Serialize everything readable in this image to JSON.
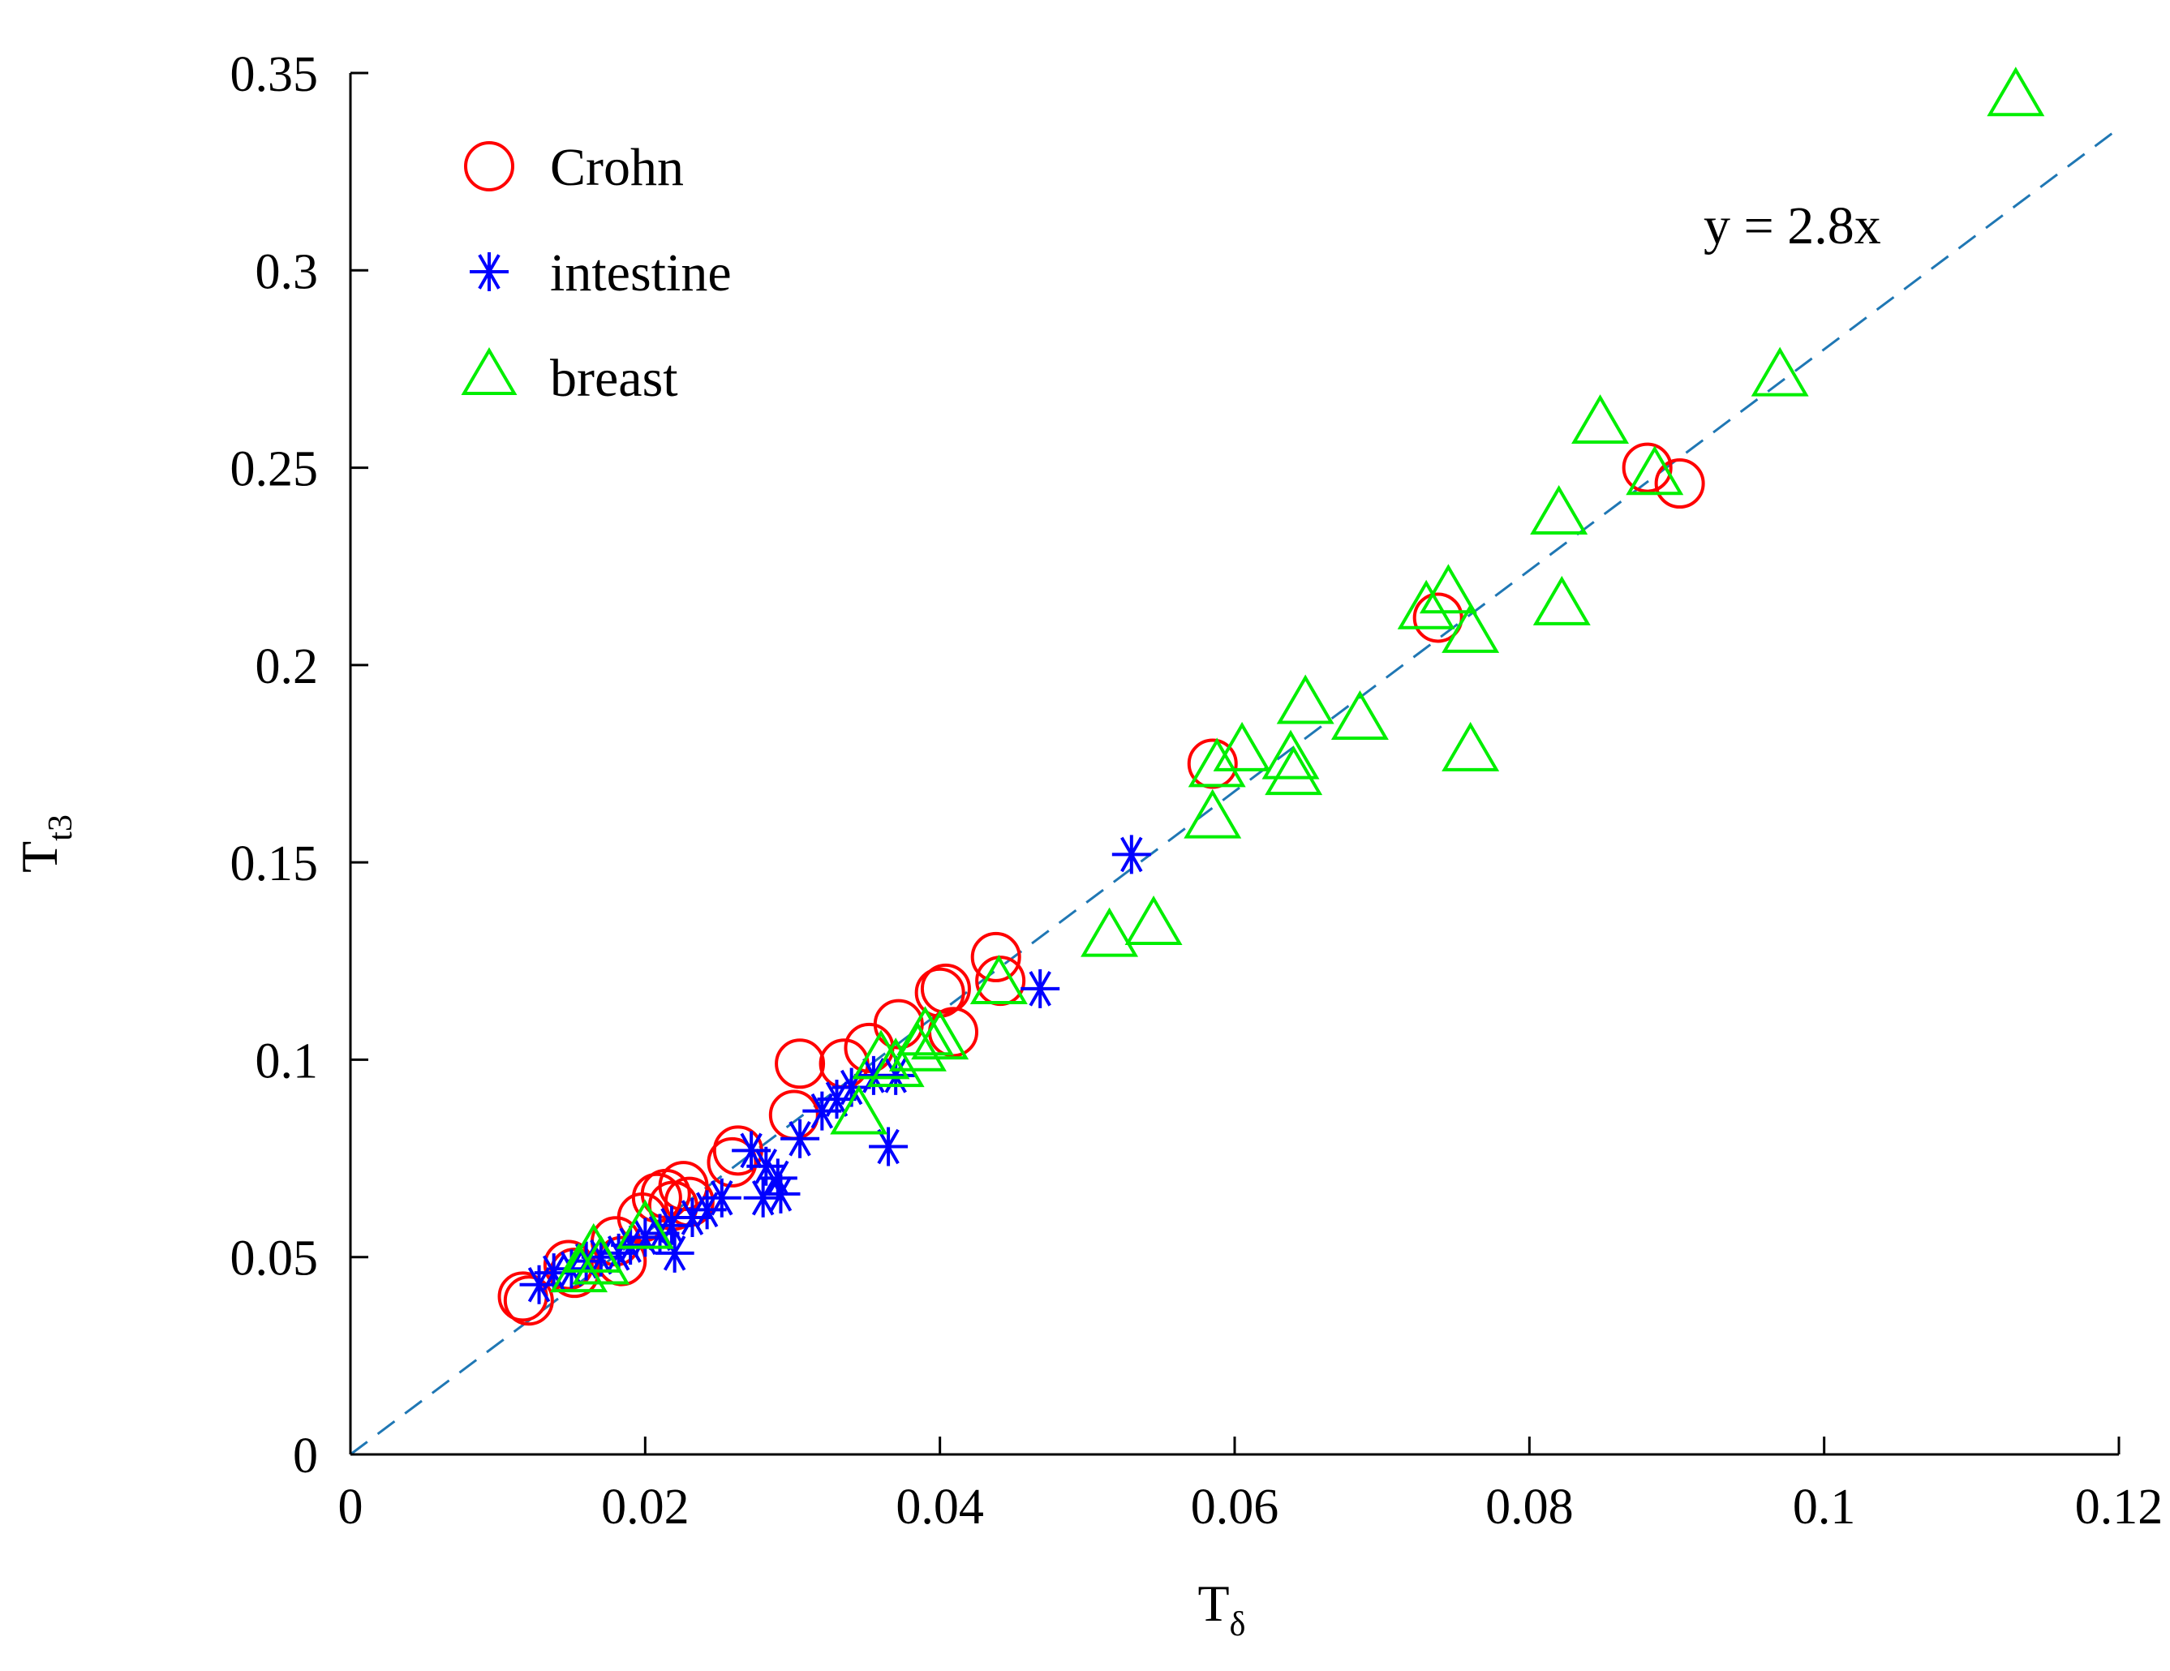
{
  "chart_data": {
    "type": "scatter",
    "xlabel": "T",
    "xlabel_sub": "δ",
    "ylabel": "T",
    "ylabel_sub": "t3",
    "xlim": [
      0,
      0.12
    ],
    "ylim": [
      0,
      0.35
    ],
    "xticks": [
      0,
      0.02,
      0.04,
      0.06,
      0.08,
      0.1,
      0.12
    ],
    "xtick_labels": [
      "0",
      "0.02",
      "0.04",
      "0.06",
      "0.08",
      "0.1",
      "0.12"
    ],
    "yticks": [
      0,
      0.05,
      0.1,
      0.15,
      0.2,
      0.25,
      0.3,
      0.35
    ],
    "ytick_labels": [
      "0",
      "0.05",
      "0.1",
      "0.15",
      "0.2",
      "0.25",
      "0.3",
      "0.35"
    ],
    "grid": false,
    "legend_position": "top-left",
    "fit_line": {
      "slope": 2.8,
      "label": "y = 2.8x",
      "color": "#1f77b4",
      "style": "dashed"
    },
    "series": [
      {
        "name": "Crohn",
        "marker": "circle",
        "color": "#ff0000",
        "points": [
          [
            0.0117,
            0.04
          ],
          [
            0.0121,
            0.039
          ],
          [
            0.0148,
            0.048
          ],
          [
            0.0152,
            0.046
          ],
          [
            0.018,
            0.054
          ],
          [
            0.0184,
            0.049
          ],
          [
            0.0198,
            0.06
          ],
          [
            0.0208,
            0.065
          ],
          [
            0.0214,
            0.066
          ],
          [
            0.0219,
            0.063
          ],
          [
            0.0226,
            0.068
          ],
          [
            0.023,
            0.064
          ],
          [
            0.0259,
            0.074
          ],
          [
            0.0263,
            0.077
          ],
          [
            0.0301,
            0.086
          ],
          [
            0.0305,
            0.099
          ],
          [
            0.0335,
            0.099
          ],
          [
            0.0352,
            0.103
          ],
          [
            0.0372,
            0.109
          ],
          [
            0.04,
            0.117
          ],
          [
            0.0404,
            0.118
          ],
          [
            0.0409,
            0.107
          ],
          [
            0.0438,
            0.126
          ],
          [
            0.0441,
            0.12
          ],
          [
            0.0585,
            0.175
          ],
          [
            0.0738,
            0.212
          ],
          [
            0.088,
            0.25
          ],
          [
            0.0902,
            0.246
          ]
        ]
      },
      {
        "name": "intestine",
        "marker": "asterisk",
        "color": "#0000ff",
        "points": [
          [
            0.0128,
            0.043
          ],
          [
            0.0138,
            0.046
          ],
          [
            0.015,
            0.047
          ],
          [
            0.016,
            0.049
          ],
          [
            0.017,
            0.05
          ],
          [
            0.0182,
            0.051
          ],
          [
            0.019,
            0.053
          ],
          [
            0.02,
            0.055
          ],
          [
            0.021,
            0.056
          ],
          [
            0.0218,
            0.058
          ],
          [
            0.022,
            0.051
          ],
          [
            0.0232,
            0.06
          ],
          [
            0.0242,
            0.062
          ],
          [
            0.0252,
            0.065
          ],
          [
            0.0272,
            0.077
          ],
          [
            0.028,
            0.065
          ],
          [
            0.0282,
            0.073
          ],
          [
            0.029,
            0.07
          ],
          [
            0.0292,
            0.066
          ],
          [
            0.0305,
            0.08
          ],
          [
            0.032,
            0.087
          ],
          [
            0.033,
            0.09
          ],
          [
            0.034,
            0.093
          ],
          [
            0.0355,
            0.096
          ],
          [
            0.0365,
            0.078
          ],
          [
            0.037,
            0.096
          ],
          [
            0.0468,
            0.118
          ],
          [
            0.053,
            0.152
          ]
        ]
      },
      {
        "name": "breast",
        "marker": "triangle",
        "color": "#00ee00",
        "points": [
          [
            0.0155,
            0.046
          ],
          [
            0.0165,
            0.051
          ],
          [
            0.017,
            0.048
          ],
          [
            0.02,
            0.057
          ],
          [
            0.0345,
            0.086
          ],
          [
            0.036,
            0.1
          ],
          [
            0.037,
            0.098
          ],
          [
            0.0385,
            0.102
          ],
          [
            0.039,
            0.106
          ],
          [
            0.04,
            0.105
          ],
          [
            0.044,
            0.119
          ],
          [
            0.0515,
            0.131
          ],
          [
            0.0545,
            0.134
          ],
          [
            0.0585,
            0.161
          ],
          [
            0.0588,
            0.174
          ],
          [
            0.0605,
            0.178
          ],
          [
            0.0638,
            0.176
          ],
          [
            0.064,
            0.172
          ],
          [
            0.0648,
            0.19
          ],
          [
            0.0685,
            0.186
          ],
          [
            0.073,
            0.214
          ],
          [
            0.0745,
            0.218
          ],
          [
            0.076,
            0.208
          ],
          [
            0.076,
            0.178
          ],
          [
            0.082,
            0.238
          ],
          [
            0.0822,
            0.215
          ],
          [
            0.0848,
            0.261
          ],
          [
            0.0885,
            0.248
          ],
          [
            0.097,
            0.273
          ],
          [
            0.113,
            0.344
          ]
        ]
      }
    ]
  }
}
